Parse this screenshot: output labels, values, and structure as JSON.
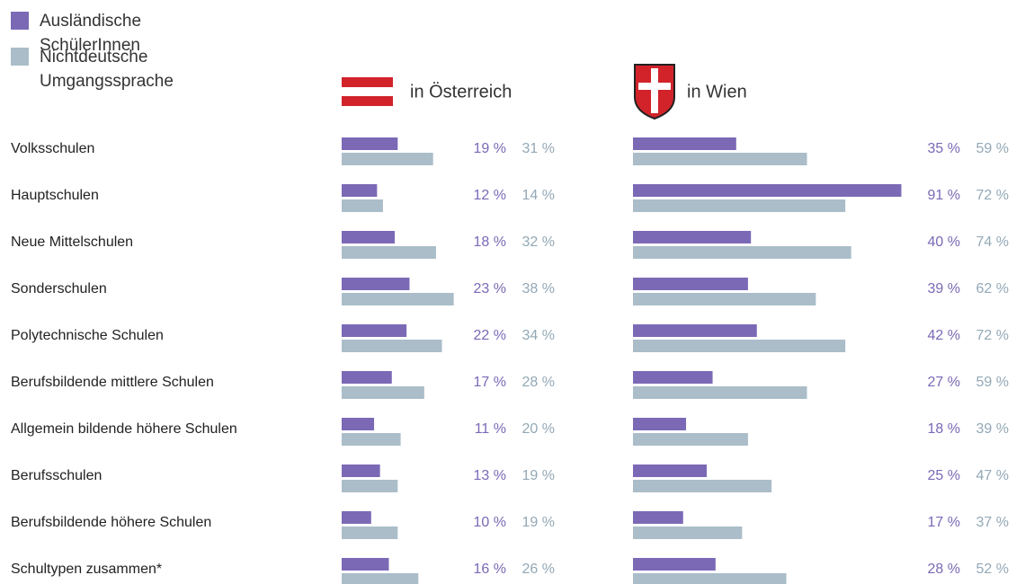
{
  "chart_data": {
    "type": "bar",
    "series": [
      {
        "name": "Ausländische SchülerInnen",
        "color": "#7b69b6"
      },
      {
        "name": "Nichtdeutsche Umgangssprache",
        "color": "#aabdc9"
      }
    ],
    "categories": [
      "Volksschulen",
      "Hauptschulen",
      "Neue Mittelschulen",
      "Sonderschulen",
      "Polytechnische Schulen",
      "Berufsbildende mittlere Schulen",
      "Allgemein bildende höhere Schulen",
      "Berufsschulen",
      "Berufsbildende höhere Schulen",
      "Schultypen zusammen*"
    ],
    "panels": [
      {
        "title": "in Österreich",
        "values": [
          [
            19,
            12,
            18,
            23,
            22,
            17,
            11,
            13,
            10,
            16
          ],
          [
            31,
            14,
            32,
            38,
            34,
            28,
            20,
            19,
            19,
            26
          ]
        ],
        "value_labels": [
          [
            "19 %",
            "12 %",
            "18 %",
            "23 %",
            "22 %",
            "17 %",
            "11 %",
            "13 %",
            "10 %",
            "16 %"
          ],
          [
            "31 %",
            "14 %",
            "32 %",
            "38 %",
            "34 %",
            "28 %",
            "20 %",
            "19 %",
            "19 %",
            "26 %"
          ]
        ]
      },
      {
        "title": "in Wien",
        "values": [
          [
            35,
            91,
            40,
            39,
            42,
            27,
            18,
            25,
            17,
            28
          ],
          [
            59,
            72,
            74,
            62,
            72,
            59,
            39,
            47,
            37,
            52
          ]
        ],
        "value_labels": [
          [
            "35 %",
            "91 %",
            "40 %",
            "39 %",
            "42 %",
            "27 %",
            "18 %",
            "25 %",
            "17 %",
            "28 %"
          ],
          [
            "59 %",
            "72 %",
            "74 %",
            "62 %",
            "72 %",
            "59 %",
            "39 %",
            "47 %",
            "37 %",
            "52 %"
          ]
        ]
      }
    ]
  }
}
